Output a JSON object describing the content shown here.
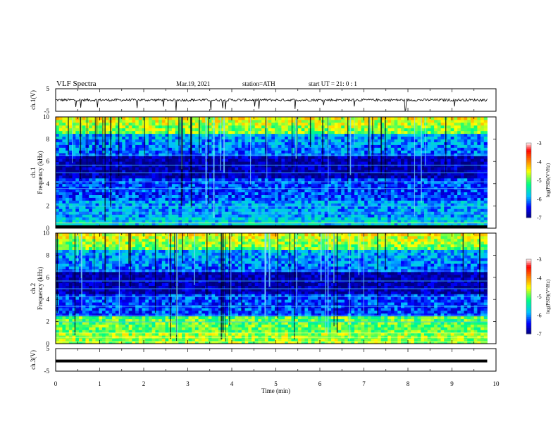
{
  "header": {
    "title": "VLF  Spectra",
    "date": "Mar.19, 2021",
    "station": "station=ATH",
    "start_ut": "start  UT  =    21: 0   : 1"
  },
  "chart_data": {
    "type": "heatmap",
    "title": "VLF  Spectra",
    "xlabel": "Time  (min)",
    "xlim": [
      0,
      10
    ],
    "x_ticks": [
      "0",
      "1",
      "2",
      "3",
      "4",
      "5",
      "6",
      "7",
      "8",
      "9",
      "10"
    ],
    "data_extent_min": 9.8,
    "panels": [
      {
        "id": "ch1-waveform",
        "ylabel": "ch.1(V)",
        "ylim": [
          -5,
          5
        ],
        "y_ticks": [
          "5",
          "-5"
        ],
        "level": 0.0
      },
      {
        "id": "ch1-spectrogram",
        "ylabel": "ch.1\nFrequency  (kHz)",
        "ylim": [
          0,
          10
        ],
        "y_ticks": [
          "0",
          "2",
          "4",
          "6",
          "8",
          "10"
        ],
        "colorbar": {
          "label": "log(PSD)(V²/Hz)",
          "range": [
            -7,
            -3
          ],
          "ticks": [
            "-3",
            "-4",
            "-5",
            "-6",
            "-7"
          ]
        }
      },
      {
        "id": "ch2-spectrogram",
        "ylabel": "ch.2\nFrequency  (kHz)",
        "ylim": [
          0,
          10
        ],
        "y_ticks": [
          "0",
          "2",
          "4",
          "6",
          "8",
          "10"
        ],
        "colorbar": {
          "label": "log(PSD)(V²/Hz)",
          "range": [
            -7,
            -3
          ],
          "ticks": [
            "-3",
            "-4",
            "-5",
            "-6",
            "-7"
          ]
        }
      },
      {
        "id": "ch3-waveform",
        "ylabel": "ch.3(V)",
        "ylim": [
          -5,
          5
        ],
        "y_ticks": [
          "5",
          "-5"
        ],
        "level": -0.5
      }
    ],
    "grid": false,
    "colormap": [
      "#000080",
      "#0000ff",
      "#00bfff",
      "#00ff80",
      "#ffff00",
      "#ff8000",
      "#ff0000",
      "#ffffff"
    ]
  }
}
